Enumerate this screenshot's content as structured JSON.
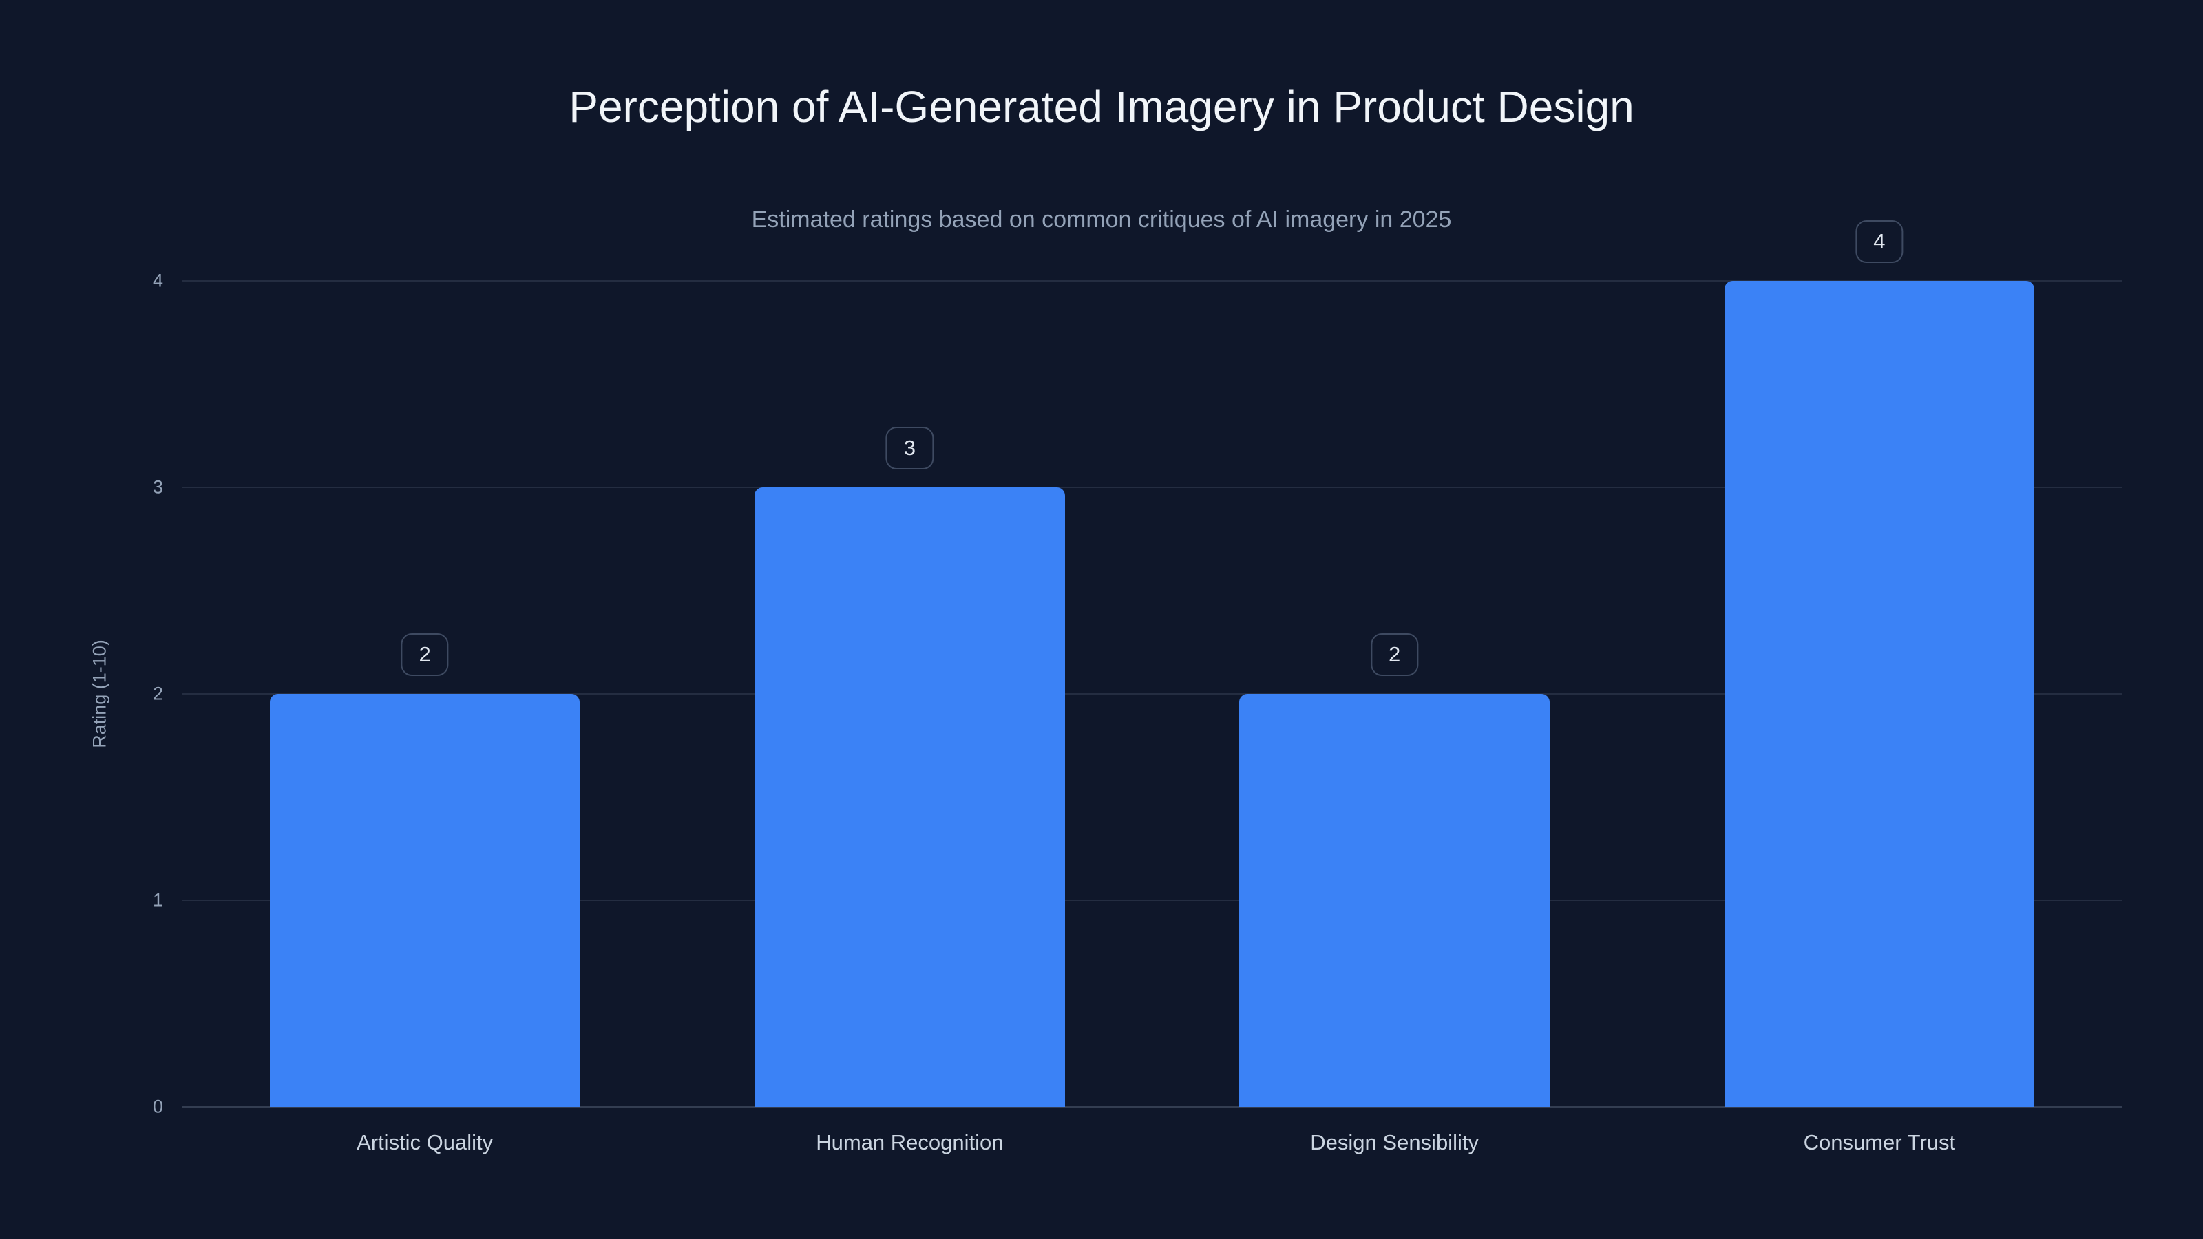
{
  "chart_data": {
    "type": "bar",
    "title": "Perception of AI-Generated Imagery in Product Design",
    "subtitle": "Estimated ratings based on common critiques of AI imagery in 2025",
    "categories": [
      "Artistic Quality",
      "Human Recognition",
      "Design Sensibility",
      "Consumer Trust"
    ],
    "values": [
      2,
      3,
      2,
      4
    ],
    "xlabel": "",
    "ylabel": "Rating (1-10)",
    "ylim": [
      0,
      4
    ],
    "yticks": [
      0,
      1,
      2,
      3,
      4
    ],
    "grid": true,
    "legend": false,
    "bar_width_fraction": 0.16,
    "colors": {
      "background": "#0f172a",
      "bar": "#3b82f6",
      "grid": "rgba(148,163,184,0.16)",
      "title": "#f1f5f9",
      "subtitle": "#94a3b8",
      "tick": "#94a3b8",
      "category_label": "#cbd5e1",
      "badge_border": "#3e4a61",
      "badge_text": "#e2e8f0"
    }
  }
}
